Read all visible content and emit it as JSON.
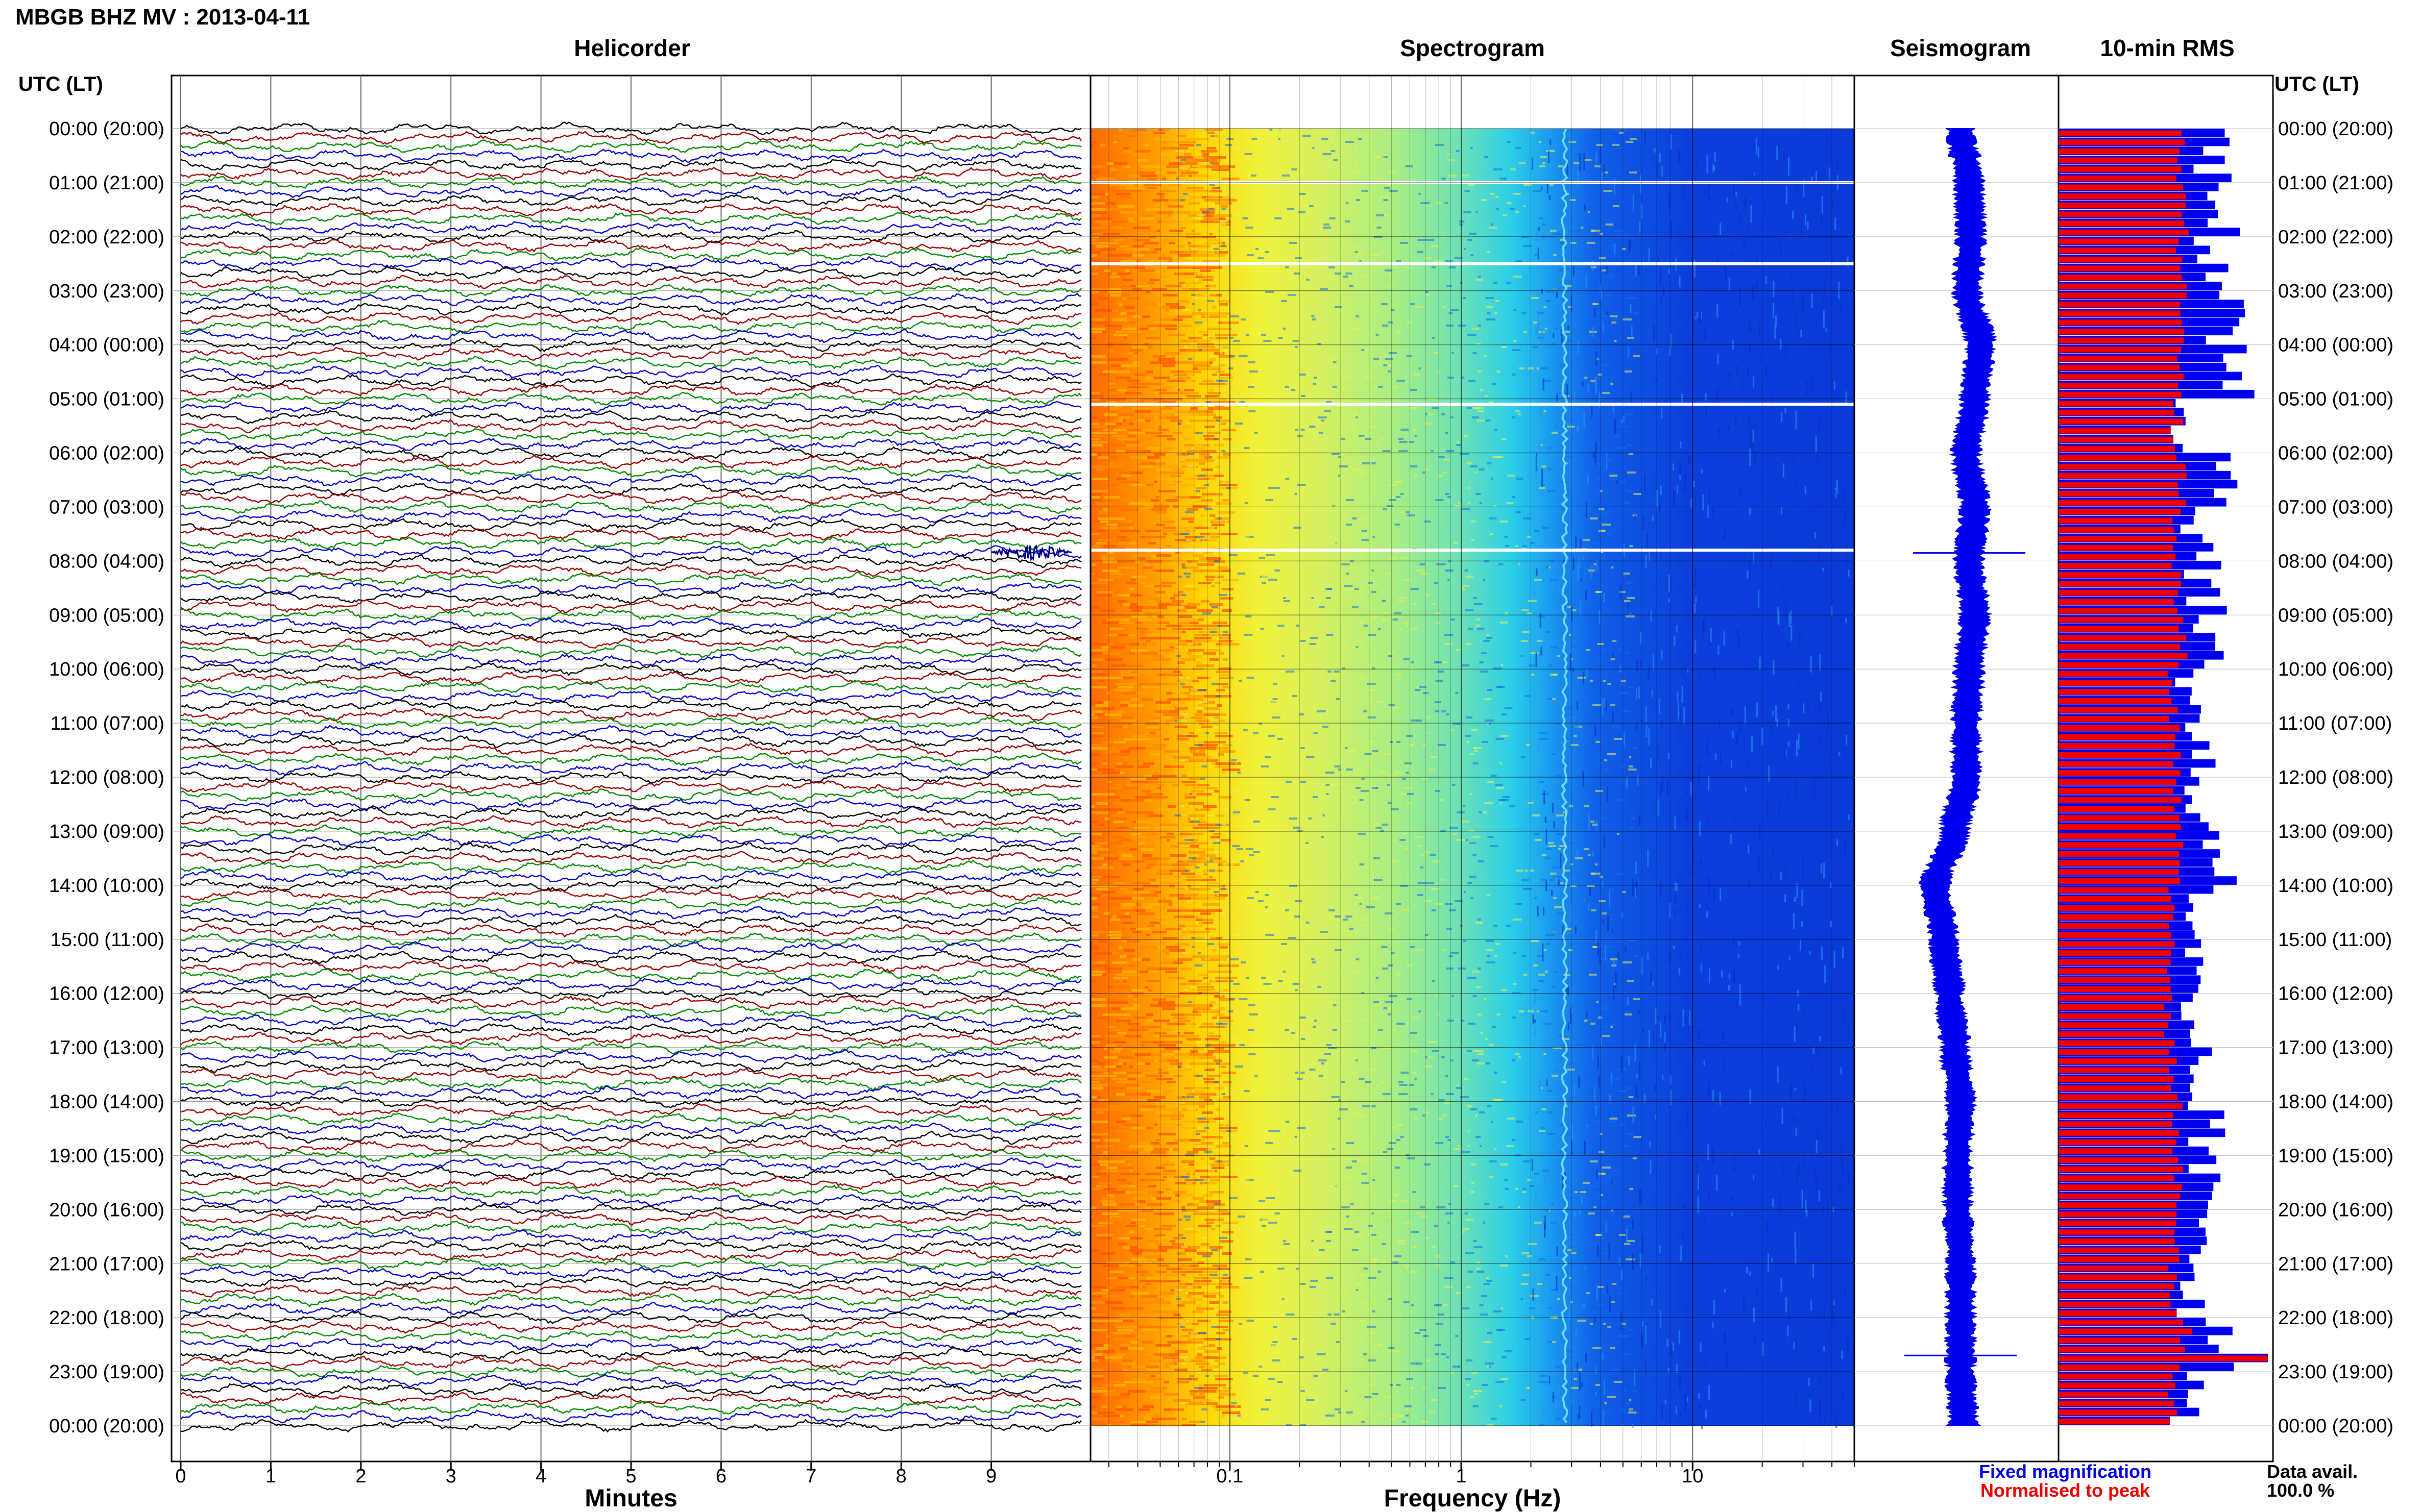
{
  "title": "MBGB BHZ MV : 2013-04-11",
  "panels": {
    "helicorder": "Helicorder",
    "spectrogram": "Spectrogram",
    "seismogram": "Seismogram",
    "rms": "10-min RMS"
  },
  "time_axis": {
    "label_left": "UTC (LT)",
    "label_right": "UTC (LT)",
    "ticks": [
      "00:00 (20:00)",
      "01:00 (21:00)",
      "02:00 (22:00)",
      "03:00 (23:00)",
      "04:00 (00:00)",
      "05:00 (01:00)",
      "06:00 (02:00)",
      "07:00 (03:00)",
      "08:00 (04:00)",
      "09:00 (05:00)",
      "10:00 (06:00)",
      "11:00 (07:00)",
      "12:00 (08:00)",
      "13:00 (09:00)",
      "14:00 (10:00)",
      "15:00 (11:00)",
      "16:00 (12:00)",
      "17:00 (13:00)",
      "18:00 (14:00)",
      "19:00 (15:00)",
      "20:00 (16:00)",
      "21:00 (17:00)",
      "22:00 (18:00)",
      "23:00 (19:00)",
      "00:00 (20:00)"
    ]
  },
  "legend": {
    "fixed": "Fixed magnification",
    "normalised": "Normalised to peak",
    "data_label": "Data avail.",
    "data_value": "100.0 %"
  },
  "colors": {
    "fixed": "#0000ee",
    "normalised": "#ee0000",
    "trace_cycle": [
      "#000000",
      "#990000",
      "#008800",
      "#0000cc"
    ]
  },
  "chart_data": [
    {
      "type": "line",
      "name": "helicorder",
      "xlabel": "Minutes",
      "xlim": [
        0,
        10
      ],
      "xticks": [
        "0",
        "1",
        "2",
        "3",
        "4",
        "5",
        "6",
        "7",
        "8",
        "9"
      ],
      "rows_per_hour": 6,
      "hours": 24,
      "event": {
        "hour": 7,
        "row": 4,
        "minute_start": 9.0,
        "minute_end": 9.9
      }
    },
    {
      "type": "heatmap",
      "name": "spectrogram",
      "xlabel": "Frequency (Hz)",
      "xscale": "log",
      "xlim": [
        0.025,
        50
      ],
      "xticks": [
        0.1,
        1,
        10
      ],
      "xtick_labels": [
        "0.1",
        "1",
        "10"
      ],
      "energy_band_hz": [
        0.025,
        2.5
      ],
      "tonal_line_hz": 2.8,
      "gaps_utc_hours": [
        1.0,
        2.5,
        5.1,
        7.8
      ]
    },
    {
      "type": "line",
      "name": "seismogram",
      "utc_hours": [
        0,
        1,
        2,
        3,
        4,
        5,
        6,
        7,
        8,
        9,
        10,
        11,
        12,
        13,
        14,
        15,
        16,
        17,
        18,
        19,
        20,
        21,
        22,
        23,
        24
      ],
      "offset_relative": [
        0.0,
        0.15,
        0.18,
        0.12,
        0.35,
        0.25,
        0.1,
        0.25,
        0.15,
        0.25,
        0.15,
        0.1,
        0.1,
        -0.1,
        -0.45,
        -0.3,
        -0.2,
        -0.1,
        0.0,
        -0.05,
        -0.05,
        0.0,
        0.0,
        0.0,
        0.05
      ],
      "spikes_utc_hours": [
        7.85,
        22.7
      ]
    },
    {
      "type": "bar",
      "name": "rms",
      "series": [
        {
          "name": "Fixed magnification",
          "values_relative": [
            0.75,
            0.82,
            0.72,
            0.78,
            0.88,
            0.62,
            0.8,
            0.68,
            0.7,
            0.72,
            0.64,
            0.68,
            0.66,
            0.8,
            0.66,
            0.62,
            0.58,
            0.64,
            0.7,
            0.68,
            0.72,
            0.66,
            0.74,
            0.62
          ]
        },
        {
          "name": "Normalised to peak",
          "values_relative": [
            0.6,
            0.62,
            0.6,
            0.62,
            0.6,
            0.58,
            0.6,
            0.58,
            0.58,
            0.6,
            0.56,
            0.58,
            0.58,
            0.6,
            0.56,
            0.54,
            0.54,
            0.56,
            0.58,
            0.58,
            0.58,
            0.56,
            0.62,
            0.56
          ]
        }
      ],
      "peak_utc_hour": 22.8
    }
  ]
}
